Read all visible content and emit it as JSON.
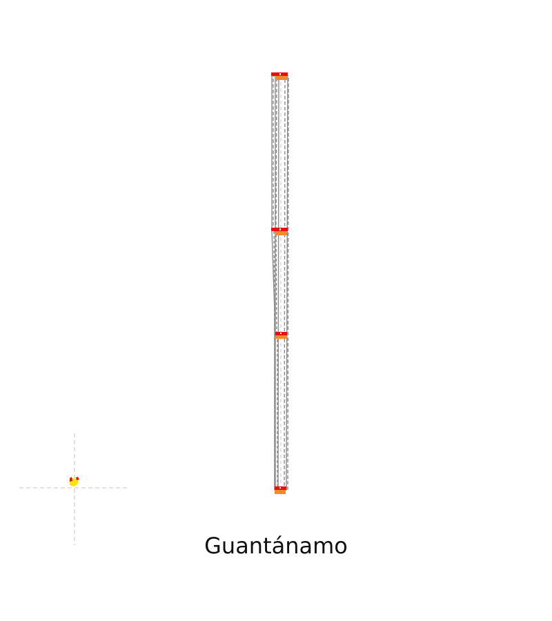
{
  "caption": "Guantánamo",
  "colors": {
    "outline": "#8a8a8a",
    "guide": "#d8d8d8",
    "marker_red": "#e8100f",
    "marker_orange": "#f08a2a",
    "marker_yellow": "#ffe40a"
  },
  "icons": {
    "origin_marker": "fragment-blob-icon"
  }
}
